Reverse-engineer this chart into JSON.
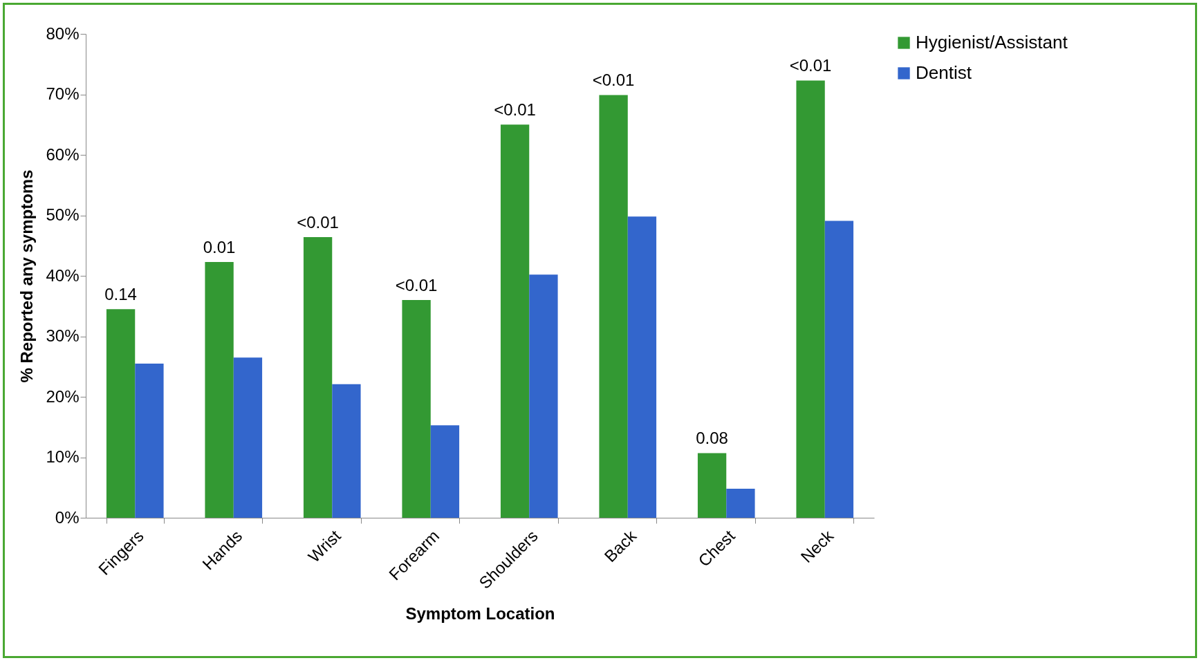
{
  "chart_data": {
    "type": "bar",
    "xlabel": "Symptom Location",
    "ylabel": "% Reported any symptoms",
    "categories": [
      "Fingers",
      "Hands",
      "Wrist",
      "Forearm",
      "Shoulders",
      "Back",
      "Chest",
      "Neck"
    ],
    "series": [
      {
        "name": "Hygienist/Assistant",
        "color": "#339933",
        "values": [
          34.5,
          42.3,
          46.4,
          36.0,
          65.0,
          69.9,
          10.7,
          72.3
        ]
      },
      {
        "name": "Dentist",
        "color": "#3366cc",
        "values": [
          25.5,
          26.5,
          22.1,
          15.3,
          40.2,
          49.8,
          4.8,
          49.1
        ]
      }
    ],
    "ylim": [
      0,
      80
    ],
    "yticks": [
      {
        "value": 0,
        "label": "0%"
      },
      {
        "value": 10,
        "label": "10%"
      },
      {
        "value": 20,
        "label": "20%"
      },
      {
        "value": 30,
        "label": "30%"
      },
      {
        "value": 40,
        "label": "40%"
      },
      {
        "value": 50,
        "label": "50%"
      },
      {
        "value": 60,
        "label": "60%"
      },
      {
        "value": 70,
        "label": "70%"
      },
      {
        "value": 80,
        "label": "80%"
      }
    ],
    "legend": "right",
    "grid": false,
    "annotations": [
      {
        "text": "0.14",
        "x": "Fingers",
        "y": 34.5
      },
      {
        "text": "0.01",
        "x": "Hands",
        "y": 42.3
      },
      {
        "text": "<0.01",
        "x": "Wrist",
        "y": 46.4
      },
      {
        "text": "<0.01",
        "x": "Forearm",
        "y": 36.0
      },
      {
        "text": "<0.01",
        "x": "Shoulders",
        "y": 65.0
      },
      {
        "text": "<0.01",
        "x": "Back",
        "y": 69.9
      },
      {
        "text": "0.08",
        "x": "Chest",
        "y": 10.7
      },
      {
        "text": "<0.01",
        "x": "Neck",
        "y": 72.3
      }
    ]
  }
}
